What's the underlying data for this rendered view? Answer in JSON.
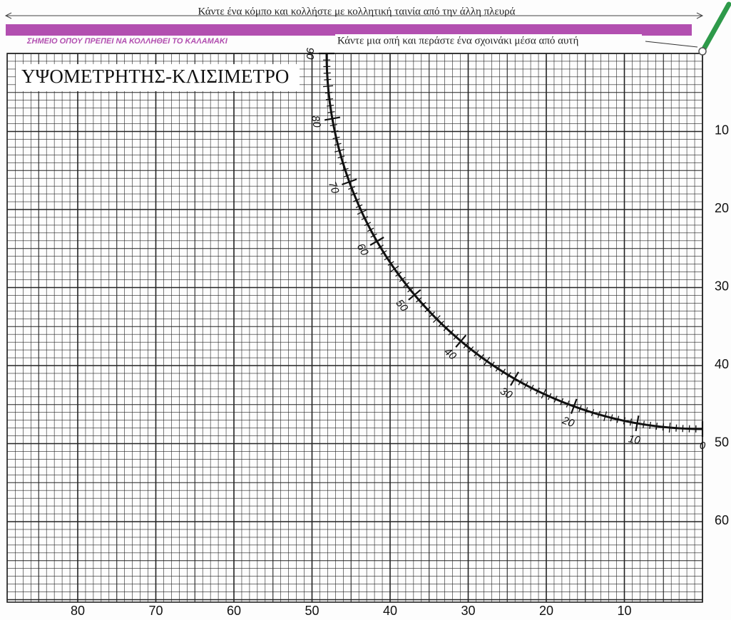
{
  "header": {
    "instruction_top": "Κάντε ένα κόμπο και κολλήστε με κολλητική ταινία από την άλλη πλευρά",
    "straw_label": "ΣΗΜΕΙΟ ΟΠΟΥ ΠΡΕΠΕΙ ΝΑ ΚΟΛΛΗΘΕΙ ΤΟ ΚΑΛΑΜΑΚΙ",
    "hole_instruction": "Κάντε μια οπή και περάστε ένα σχοινάκι μέσα από αυτή"
  },
  "title": "ΥΨΟΜΕΤΡΗΤΗΣ-ΚΛΙΣΙΜΕΤΡΟ",
  "arc_labels": [
    90,
    80,
    70,
    60,
    50,
    40,
    30,
    20,
    10,
    0
  ],
  "right_labels": [
    10,
    20,
    30,
    40,
    50,
    60
  ],
  "bottom_labels": [
    80,
    70,
    60,
    50,
    40,
    30,
    20,
    10
  ]
}
